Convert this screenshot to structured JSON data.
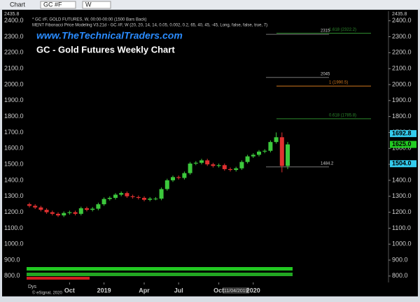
{
  "window": {
    "title": "Chart",
    "symbol": "GC #F",
    "interval": "W"
  },
  "chart_data": {
    "type": "candlestick",
    "subtitle": "www.TheTechnicalTraders.com",
    "title": "GC - Gold Futures Weekly Chart",
    "info": [
      "* GC #F, GOLD FUTURES, W, 00:00-00:00 (1500 Bars Back)",
      "MENT Fibonacci Price Modeling V3.21d - GC #F, W (20, 20, 14, 14, 0.05, 0.002, 0.2, 65, 40, 45, -45, Long, false, false, true, 7)"
    ],
    "corner_label": {
      "value": 2435.8,
      "label": "2435.8"
    },
    "categories": [
      null,
      null,
      null,
      null,
      null,
      null,
      null,
      "Oct",
      null,
      null,
      null,
      null,
      null,
      "2019",
      null,
      null,
      null,
      null,
      null,
      null,
      "Apr",
      null,
      null,
      null,
      null,
      null,
      "Jul",
      null,
      null,
      null,
      null,
      null,
      null,
      "Oct",
      null,
      null,
      null,
      null,
      null,
      "2020",
      null,
      null,
      null,
      null,
      null,
      null
    ],
    "open": [
      1250,
      1240,
      1230,
      1215,
      1200,
      1190,
      1180,
      1195,
      1200,
      1190,
      1225,
      1215,
      1222,
      1250,
      1283,
      1290,
      1310,
      1320,
      1300,
      1295,
      1290,
      1278,
      1285,
      1285,
      1345,
      1400,
      1420,
      1415,
      1445,
      1505,
      1510,
      1525,
      1500,
      1490,
      1495,
      1470,
      1465,
      1475,
      1515,
      1550,
      1560,
      1580,
      1585,
      1640,
      1670,
      1490
    ],
    "high": [
      1260,
      1250,
      1240,
      1225,
      1210,
      1200,
      1205,
      1210,
      1210,
      1235,
      1235,
      1232,
      1260,
      1293,
      1300,
      1320,
      1330,
      1330,
      1310,
      1305,
      1300,
      1295,
      1295,
      1355,
      1410,
      1430,
      1430,
      1455,
      1515,
      1520,
      1535,
      1535,
      1510,
      1505,
      1505,
      1480,
      1485,
      1525,
      1560,
      1570,
      1590,
      1595,
      1650,
      1700,
      1700,
      1640
    ],
    "low": [
      1230,
      1220,
      1205,
      1190,
      1180,
      1170,
      1170,
      1185,
      1180,
      1180,
      1205,
      1205,
      1212,
      1240,
      1273,
      1280,
      1300,
      1290,
      1285,
      1280,
      1268,
      1268,
      1275,
      1275,
      1335,
      1390,
      1405,
      1405,
      1435,
      1495,
      1500,
      1490,
      1480,
      1480,
      1460,
      1455,
      1455,
      1465,
      1505,
      1540,
      1550,
      1570,
      1575,
      1630,
      1450,
      1470
    ],
    "close": [
      1240,
      1230,
      1215,
      1200,
      1190,
      1180,
      1195,
      1200,
      1190,
      1225,
      1215,
      1222,
      1250,
      1283,
      1290,
      1310,
      1320,
      1300,
      1295,
      1290,
      1278,
      1285,
      1285,
      1345,
      1400,
      1420,
      1415,
      1445,
      1505,
      1510,
      1525,
      1500,
      1490,
      1495,
      1470,
      1465,
      1475,
      1515,
      1550,
      1560,
      1580,
      1585,
      1640,
      1670,
      1490,
      1625
    ],
    "up_color": "#3cc83c",
    "down_color": "#e03030",
    "ylim": [
      760,
      2460
    ],
    "yticks": [
      {
        "value": 800,
        "label": "800.0"
      },
      {
        "value": 900,
        "label": "900.0"
      },
      {
        "value": 1000,
        "label": "1000.0"
      },
      {
        "value": 1100,
        "label": "1100.0"
      },
      {
        "value": 1200,
        "label": "1200.0"
      },
      {
        "value": 1300,
        "label": "1300.0"
      },
      {
        "value": 1400,
        "label": "1400.0"
      },
      {
        "value": 1500,
        "label": "1500.0"
      },
      {
        "value": 1600,
        "label": "1600.0"
      },
      {
        "value": 1700,
        "label": "1700.0"
      },
      {
        "value": 1800,
        "label": "1800.0"
      },
      {
        "value": 1900,
        "label": "1900.0"
      },
      {
        "value": 2000,
        "label": "2000.0"
      },
      {
        "value": 2100,
        "label": "2100.0"
      },
      {
        "value": 2200,
        "label": "2200.0"
      },
      {
        "value": 2300,
        "label": "2300.0"
      },
      {
        "value": 2400,
        "label": "2400.0"
      }
    ],
    "levels": [
      {
        "value": 2322.2,
        "label": "1.618 (2322.2)",
        "color": "#2e8b2e"
      },
      {
        "value": 1990.5,
        "label": "1 (1990.5)",
        "color": "#d2781e"
      },
      {
        "value": 1785.8,
        "label": "0.618 (1785.8)",
        "color": "#2e8b2e"
      }
    ],
    "annotations": [
      {
        "value": 2315,
        "label": "2315"
      },
      {
        "value": 2045,
        "label": "2045"
      },
      {
        "value": 1484.2,
        "label": "1484.2"
      }
    ],
    "price_tags": [
      {
        "value": 1692.8,
        "label": "1692.8",
        "color": "#33ccee"
      },
      {
        "value": 1625.0,
        "label": "1625.0",
        "color": "#22cc22"
      },
      {
        "value": 1504.0,
        "label": "1504.0",
        "color": "#33ccee"
      }
    ],
    "footer": {
      "period": "Dys",
      "date": "11/04/2019",
      "credit": "© eSignal, 2020"
    }
  }
}
